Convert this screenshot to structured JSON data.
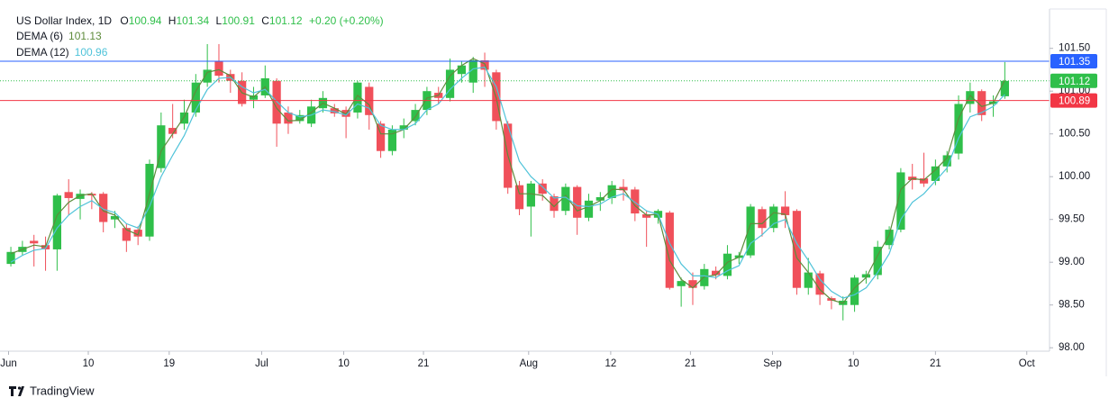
{
  "chart_data": {
    "type": "candlestick",
    "title": "US Dollar Index, 1D",
    "ohlc_labels": [
      "O",
      "H",
      "L",
      "C"
    ],
    "change": "+0.20 (+0.20%)",
    "brand": "TradingView",
    "up_color": "#2fbf4a",
    "down_color": "#f0505a",
    "open": [
      98.98,
      99.12,
      99.25,
      99.2,
      99.15,
      99.82,
      99.74,
      99.8,
      99.8,
      99.5,
      99.4,
      99.38,
      99.3,
      100.1,
      100.57,
      100.62,
      100.75,
      101.1,
      101.35,
      101.2,
      101.12,
      100.9,
      100.95,
      101.12,
      100.75,
      100.65,
      100.62,
      100.8,
      100.8,
      100.78,
      100.75,
      101.05,
      100.62,
      100.3,
      100.55,
      100.65,
      100.78,
      100.98,
      100.92,
      101.2,
      101.1,
      101.36,
      101.22,
      100.62,
      99.9,
      99.65,
      99.92,
      99.77,
      99.6,
      99.88,
      99.52,
      99.72,
      99.75,
      99.88,
      99.85,
      99.56,
      99.52,
      99.58,
      98.72,
      98.79,
      98.72,
      98.9,
      98.84,
      99.05,
      99.08,
      99.62,
      99.4,
      99.65,
      99.6,
      98.7,
      98.87,
      98.58,
      98.5,
      98.5,
      98.82,
      98.85,
      99.2,
      99.38,
      100.0,
      99.98,
      99.95,
      100.12,
      100.27,
      100.85,
      101.0,
      100.85,
      100.94
    ],
    "high": [
      99.18,
      99.25,
      99.32,
      99.3,
      99.8,
      99.97,
      99.85,
      99.82,
      99.82,
      99.6,
      99.45,
      99.42,
      100.2,
      100.75,
      100.85,
      100.9,
      101.2,
      101.55,
      101.55,
      101.25,
      101.22,
      101.05,
      101.3,
      101.15,
      100.82,
      100.78,
      100.9,
      101.0,
      100.85,
      100.82,
      101.12,
      101.1,
      100.65,
      100.6,
      100.68,
      100.85,
      101.05,
      101.05,
      101.38,
      101.35,
      101.4,
      101.45,
      101.25,
      100.65,
      99.95,
      99.95,
      99.97,
      99.8,
      99.92,
      99.9,
      99.8,
      99.82,
      99.95,
      99.97,
      99.88,
      99.6,
      99.62,
      99.6,
      98.82,
      98.88,
      98.98,
      98.95,
      99.2,
      99.12,
      99.68,
      99.65,
      99.68,
      99.83,
      99.62,
      99.05,
      98.9,
      98.6,
      98.6,
      98.85,
      98.9,
      99.25,
      99.42,
      100.1,
      100.15,
      100.28,
      100.2,
      100.3,
      100.95,
      101.1,
      101.02,
      100.95,
      101.34
    ],
    "low": [
      98.95,
      99.08,
      98.95,
      98.9,
      98.9,
      99.55,
      99.5,
      99.62,
      99.35,
      99.4,
      99.12,
      99.2,
      99.25,
      100.05,
      100.45,
      100.55,
      100.7,
      101.05,
      101.1,
      100.98,
      100.82,
      100.8,
      100.92,
      100.35,
      100.5,
      100.62,
      100.58,
      100.75,
      100.7,
      100.45,
      100.68,
      100.55,
      100.22,
      100.25,
      100.45,
      100.6,
      100.72,
      100.85,
      100.88,
      101.1,
      100.98,
      101.05,
      100.55,
      99.8,
      99.55,
      99.3,
      99.72,
      99.52,
      99.55,
      99.32,
      99.48,
      99.6,
      99.68,
      99.72,
      99.48,
      99.18,
      99.45,
      98.68,
      98.48,
      98.5,
      98.68,
      98.8,
      98.8,
      98.98,
      99.05,
      99.3,
      99.35,
      99.4,
      98.62,
      98.62,
      98.5,
      98.45,
      98.32,
      98.42,
      98.75,
      98.8,
      99.15,
      99.35,
      99.85,
      99.88,
      99.9,
      100.05,
      100.2,
      100.75,
      100.65,
      100.7,
      100.91
    ],
    "close": [
      99.12,
      99.18,
      99.22,
      99.15,
      99.78,
      99.75,
      99.8,
      99.78,
      99.47,
      99.54,
      99.25,
      99.3,
      100.15,
      100.6,
      100.5,
      100.75,
      101.1,
      101.25,
      101.18,
      101.12,
      100.85,
      100.95,
      101.15,
      100.62,
      100.62,
      100.72,
      100.82,
      100.92,
      100.74,
      100.7,
      101.1,
      100.72,
      100.3,
      100.55,
      100.6,
      100.78,
      101.0,
      100.92,
      101.25,
      101.3,
      101.36,
      101.25,
      100.65,
      99.87,
      99.62,
      99.92,
      99.8,
      99.6,
      99.88,
      99.52,
      99.72,
      99.76,
      99.9,
      99.84,
      99.57,
      99.52,
      99.6,
      98.7,
      98.78,
      98.7,
      98.92,
      98.85,
      99.1,
      99.08,
      99.65,
      99.4,
      99.65,
      99.55,
      98.7,
      98.88,
      98.62,
      98.55,
      98.55,
      98.82,
      98.86,
      99.18,
      99.38,
      100.05,
      99.96,
      99.92,
      100.12,
      100.25,
      100.85,
      101.0,
      100.72,
      100.88,
      101.12
    ],
    "series": [
      {
        "name": "DEMA (6)",
        "color": "#5e8c3c",
        "values": [
          99.1,
          99.15,
          99.2,
          99.18,
          99.55,
          99.7,
          99.78,
          99.8,
          99.6,
          99.55,
          99.38,
          99.32,
          99.8,
          100.3,
          100.5,
          100.7,
          101.0,
          101.22,
          101.25,
          101.18,
          100.98,
          100.93,
          101.05,
          100.8,
          100.65,
          100.66,
          100.75,
          100.86,
          100.8,
          100.73,
          100.95,
          100.84,
          100.5,
          100.5,
          100.55,
          100.7,
          100.92,
          100.95,
          101.18,
          101.3,
          101.38,
          101.32,
          100.92,
          100.25,
          99.8,
          99.8,
          99.78,
          99.65,
          99.78,
          99.6,
          99.65,
          99.72,
          99.85,
          99.85,
          99.66,
          99.55,
          99.56,
          99.02,
          98.8,
          98.7,
          98.83,
          98.85,
          99.0,
          99.06,
          99.45,
          99.45,
          99.58,
          99.56,
          99.05,
          98.88,
          98.68,
          98.56,
          98.52,
          98.7,
          98.82,
          99.08,
          99.32,
          99.85,
          99.98,
          99.96,
          100.08,
          100.22,
          100.68,
          100.95,
          100.82,
          100.86,
          101.13
        ]
      },
      {
        "name": "DEMA (12)",
        "color": "#4fc3d9",
        "values": [
          99.0,
          99.08,
          99.14,
          99.16,
          99.4,
          99.55,
          99.65,
          99.72,
          99.62,
          99.58,
          99.45,
          99.4,
          99.65,
          100.0,
          100.25,
          100.48,
          100.78,
          101.02,
          101.15,
          101.16,
          101.05,
          100.98,
          101.02,
          100.88,
          100.75,
          100.7,
          100.72,
          100.78,
          100.76,
          100.72,
          100.85,
          100.8,
          100.6,
          100.55,
          100.55,
          100.62,
          100.78,
          100.85,
          101.02,
          101.15,
          101.26,
          101.28,
          101.05,
          100.6,
          100.18,
          100.0,
          99.88,
          99.75,
          99.76,
          99.66,
          99.65,
          99.68,
          99.76,
          99.8,
          99.7,
          99.6,
          99.56,
          99.22,
          98.98,
          98.84,
          98.84,
          98.82,
          98.9,
          98.96,
          99.22,
          99.32,
          99.45,
          99.5,
          99.22,
          99.02,
          98.8,
          98.66,
          98.58,
          98.62,
          98.7,
          98.88,
          99.1,
          99.5,
          99.7,
          99.8,
          99.95,
          100.1,
          100.45,
          100.7,
          100.75,
          100.82,
          100.96
        ]
      }
    ],
    "price_lines": [
      {
        "value": 101.35,
        "color": "#2962ff",
        "style": "solid"
      },
      {
        "value": 101.12,
        "color": "#2fbf4a",
        "style": "dotted"
      },
      {
        "value": 100.89,
        "color": "#f23645",
        "style": "solid"
      }
    ],
    "xlim": [
      -0.94,
      89.87
    ],
    "xticks": [
      {
        "value": -0.2,
        "label": "Jun"
      },
      {
        "value": 6.7,
        "label": "10"
      },
      {
        "value": 13.7,
        "label": "19"
      },
      {
        "value": 21.7,
        "label": "Jul"
      },
      {
        "value": 28.8,
        "label": "10"
      },
      {
        "value": 35.7,
        "label": "21"
      },
      {
        "value": 44.8,
        "label": "Aug"
      },
      {
        "value": 51.9,
        "label": "12"
      },
      {
        "value": 58.8,
        "label": "21"
      },
      {
        "value": 65.9,
        "label": "Sep"
      },
      {
        "value": 72.9,
        "label": "10"
      },
      {
        "value": 80.0,
        "label": "21"
      },
      {
        "value": 87.9,
        "label": "Oct"
      }
    ],
    "ylim": [
      97.96,
      101.96
    ],
    "yticks": [
      {
        "value": 98,
        "label": "98.00"
      },
      {
        "value": 98.5,
        "label": "98.50"
      },
      {
        "value": 99,
        "label": "99.00"
      },
      {
        "value": 99.5,
        "label": "99.50"
      },
      {
        "value": 100,
        "label": "100.00"
      },
      {
        "value": 100.5,
        "label": "100.50"
      },
      {
        "value": 101,
        "label": "101.00"
      },
      {
        "value": 101.5,
        "label": "101.50"
      }
    ],
    "grid": false
  }
}
